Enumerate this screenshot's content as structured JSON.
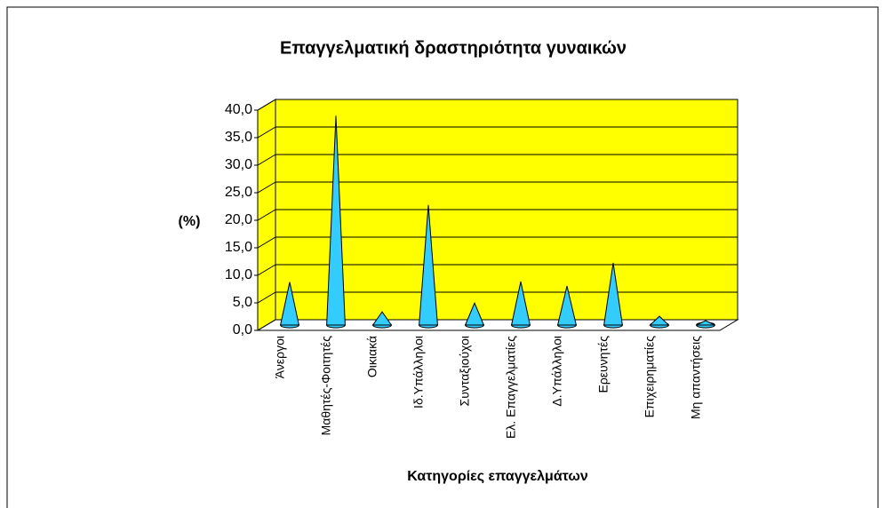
{
  "chart_data": {
    "type": "cone",
    "title": "Επαγγελματική δραστηριότητα γυναικών",
    "y_label": "(%)",
    "x_label": "Κατηγορίες επαγγελμάτων",
    "categories": [
      "Άνεργοι",
      "Μαθητές-Φοιτητές",
      "Οικιακά",
      "Ιδ.Υπάλληλοι",
      "Συνταξιούχοι",
      "Ελ. Επαγγελματίες",
      "Δ.Υπάλληλοι",
      "Ερευνητές",
      "Επιχειρηματίες",
      "Μη απαντήσεις"
    ],
    "values": [
      7.8,
      38,
      2.4,
      21.8,
      4,
      7.9,
      7.1,
      11.3,
      1.6,
      0.8
    ],
    "color": "#33ccff",
    "wall_color": "#ffff00",
    "ylim": [
      0,
      40
    ],
    "yticks": [
      {
        "value": 0,
        "label": "0,0"
      },
      {
        "value": 5,
        "label": "5,0"
      },
      {
        "value": 10,
        "label": "10,0"
      },
      {
        "value": 15,
        "label": "15,0"
      },
      {
        "value": 20,
        "label": "20,0"
      },
      {
        "value": 25,
        "label": "25,0"
      },
      {
        "value": 30,
        "label": "30,0"
      },
      {
        "value": 35,
        "label": "35,0"
      },
      {
        "value": 40,
        "label": "40,0"
      }
    ],
    "grid": true
  }
}
